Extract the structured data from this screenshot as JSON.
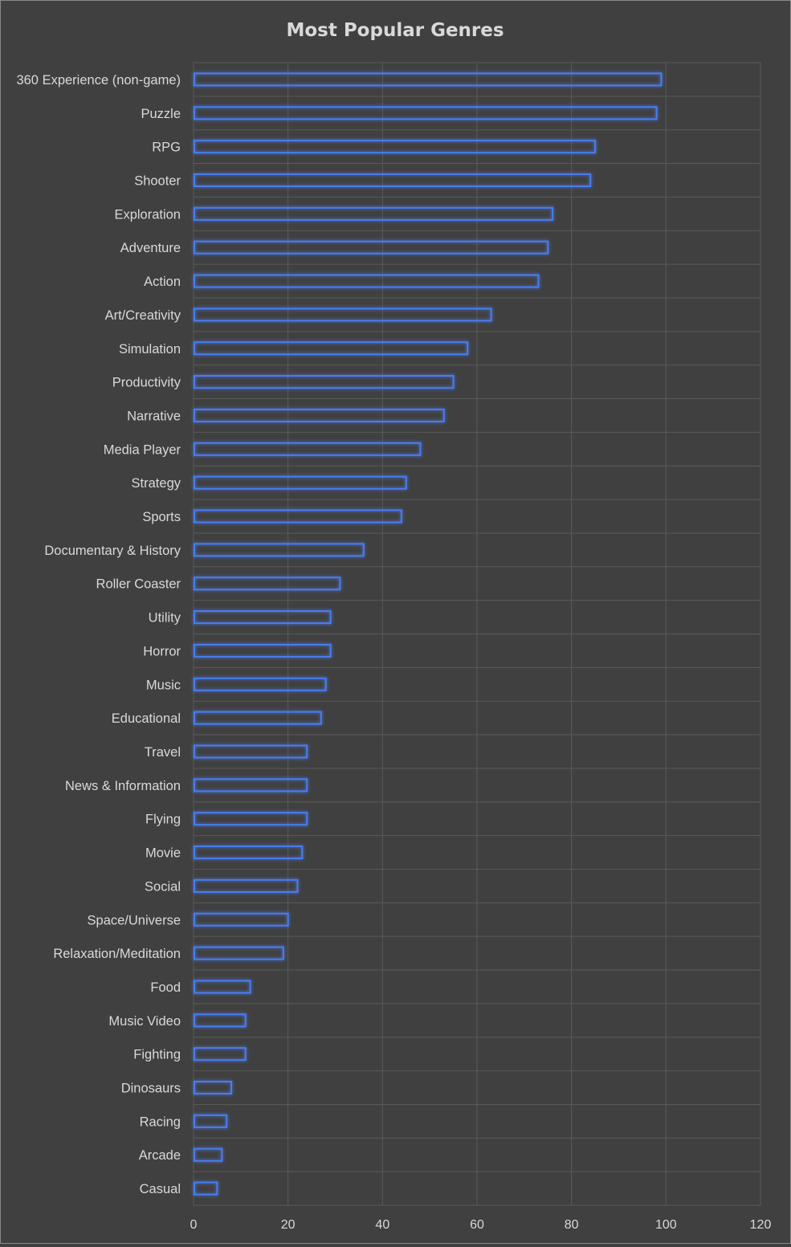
{
  "chart_data": {
    "type": "bar",
    "orientation": "horizontal",
    "title": "Most Popular Genres",
    "xlabel": "",
    "ylabel": "",
    "xlim": [
      0,
      120
    ],
    "xticks": [
      0,
      20,
      40,
      60,
      80,
      100,
      120
    ],
    "grid": true,
    "legend": "none",
    "colors": {
      "background": "#404040",
      "bar_outline": "#4a7cf0",
      "bar_glow": "#2f5fd0",
      "grid": "#5a5a5a",
      "text": "#d9d9d9"
    },
    "categories": [
      "360 Experience (non-game)",
      "Puzzle",
      "RPG",
      "Shooter",
      "Exploration",
      "Adventure",
      "Action",
      "Art/Creativity",
      "Simulation",
      "Productivity",
      "Narrative",
      "Media Player",
      "Strategy",
      "Sports",
      "Documentary & History",
      "Roller Coaster",
      "Utility",
      "Horror",
      "Music",
      "Educational",
      "Travel",
      "News & Information",
      "Flying",
      "Movie",
      "Social",
      "Space/Universe",
      "Relaxation/Meditation",
      "Food",
      "Music Video",
      "Fighting",
      "Dinosaurs",
      "Racing",
      "Arcade",
      "Casual"
    ],
    "values": [
      99,
      98,
      85,
      84,
      76,
      75,
      73,
      63,
      58,
      55,
      53,
      48,
      45,
      44,
      36,
      31,
      29,
      29,
      28,
      27,
      24,
      24,
      24,
      23,
      22,
      20,
      19,
      12,
      11,
      11,
      8,
      7,
      6,
      5
    ]
  }
}
